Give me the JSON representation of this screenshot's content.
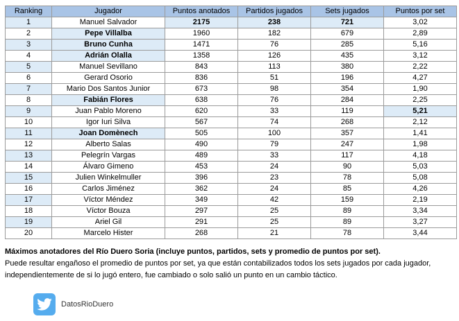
{
  "table": {
    "headers": [
      "Ranking",
      "Jugador",
      "Puntos anotados",
      "Partidos jugados",
      "Sets jugados",
      "Puntos por set"
    ],
    "rows": [
      {
        "rank": "1",
        "player": "Manuel Salvador",
        "points": "2175",
        "matches": "238",
        "sets": "721",
        "pps": "3,02"
      },
      {
        "rank": "2",
        "player": "Pepe Villalba",
        "points": "1960",
        "matches": "182",
        "sets": "679",
        "pps": "2,89"
      },
      {
        "rank": "3",
        "player": "Bruno Cunha",
        "points": "1471",
        "matches": "76",
        "sets": "285",
        "pps": "5,16"
      },
      {
        "rank": "4",
        "player": "Adrián Olalla",
        "points": "1358",
        "matches": "126",
        "sets": "435",
        "pps": "3,12"
      },
      {
        "rank": "5",
        "player": "Manuel Sevillano",
        "points": "843",
        "matches": "113",
        "sets": "380",
        "pps": "2,22"
      },
      {
        "rank": "6",
        "player": "Gerard Osorio",
        "points": "836",
        "matches": "51",
        "sets": "196",
        "pps": "4,27"
      },
      {
        "rank": "7",
        "player": "Mario Dos Santos Junior",
        "points": "673",
        "matches": "98",
        "sets": "354",
        "pps": "1,90"
      },
      {
        "rank": "8",
        "player": "Fabián Flores",
        "points": "638",
        "matches": "76",
        "sets": "284",
        "pps": "2,25"
      },
      {
        "rank": "9",
        "player": "Juan Pablo Moreno",
        "points": "620",
        "matches": "33",
        "sets": "119",
        "pps": "5,21"
      },
      {
        "rank": "10",
        "player": "Igor Iuri Silva",
        "points": "567",
        "matches": "74",
        "sets": "268",
        "pps": "2,12"
      },
      {
        "rank": "11",
        "player": "Joan Domènech",
        "points": "505",
        "matches": "100",
        "sets": "357",
        "pps": "1,41"
      },
      {
        "rank": "12",
        "player": "Alberto Salas",
        "points": "490",
        "matches": "79",
        "sets": "247",
        "pps": "1,98"
      },
      {
        "rank": "13",
        "player": "Pelegrín Vargas",
        "points": "489",
        "matches": "33",
        "sets": "117",
        "pps": "4,18"
      },
      {
        "rank": "14",
        "player": "Álvaro Gimeno",
        "points": "453",
        "matches": "24",
        "sets": "90",
        "pps": "5,03"
      },
      {
        "rank": "15",
        "player": "Julien Winkelmuller",
        "points": "396",
        "matches": "23",
        "sets": "78",
        "pps": "5,08"
      },
      {
        "rank": "16",
        "player": "Carlos Jiménez",
        "points": "362",
        "matches": "24",
        "sets": "85",
        "pps": "4,26"
      },
      {
        "rank": "17",
        "player": "Víctor Méndez",
        "points": "349",
        "matches": "42",
        "sets": "159",
        "pps": "2,19"
      },
      {
        "rank": "18",
        "player": "Víctor Bouza",
        "points": "297",
        "matches": "25",
        "sets": "89",
        "pps": "3,34"
      },
      {
        "rank": "19",
        "player": "Ariel Gil",
        "points": "291",
        "matches": "25",
        "sets": "89",
        "pps": "3,27"
      },
      {
        "rank": "20",
        "player": "Marcelo Hister",
        "points": "268",
        "matches": "21",
        "sets": "78",
        "pps": "3,44"
      }
    ]
  },
  "caption": {
    "title": "Máximos anotadores del Río Duero Soria (incluye puntos, partidos, sets y promedio de puntos por set).",
    "body": "Puede resultar engañoso el promedio de puntos por set, ya que están contabilizados todos los sets jugados por cada jugador, independientemente de si lo jugó entero, fue cambiado o solo salió un punto en un cambio táctico."
  },
  "brand": {
    "icon": "twitter-bird-icon",
    "handle": "DatosRioDuero",
    "color": "#55acee"
  },
  "colors": {
    "header_bg": "#a9c4e6",
    "highlight_bg": "#ddebf7"
  }
}
